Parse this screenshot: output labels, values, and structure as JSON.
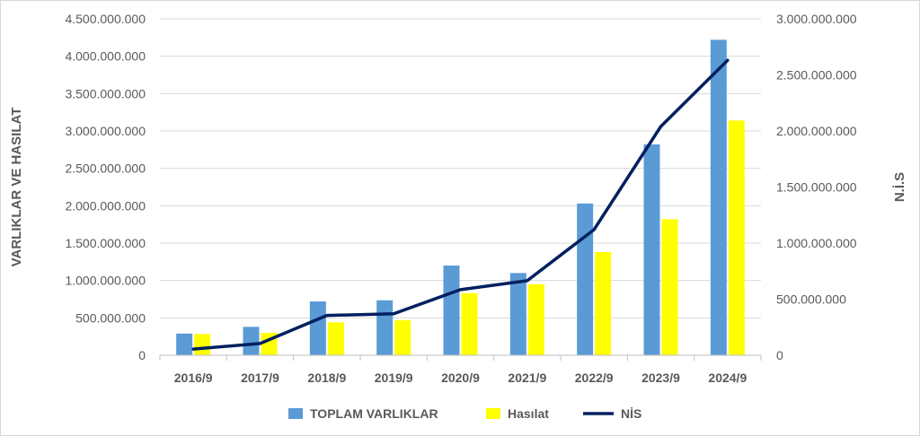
{
  "chart_data": {
    "type": "bar",
    "categories": [
      "2016/9",
      "2017/9",
      "2018/9",
      "2019/9",
      "2020/9",
      "2021/9",
      "2022/9",
      "2023/9",
      "2024/9"
    ],
    "series": [
      {
        "name": "TOPLAM VARLIKLAR",
        "type": "bar",
        "axis": "left",
        "color": "#5b9bd5",
        "values": [
          290000000,
          380000000,
          720000000,
          735000000,
          1200000000,
          1100000000,
          2030000000,
          2820000000,
          4220000000
        ]
      },
      {
        "name": "Hasılat",
        "type": "bar",
        "axis": "left",
        "color": "#ffff00",
        "values": [
          285000000,
          300000000,
          440000000,
          470000000,
          830000000,
          950000000,
          1380000000,
          1820000000,
          3140000000
        ]
      },
      {
        "name": "NİS",
        "type": "line",
        "axis": "right",
        "color": "#002060",
        "values": [
          55000000,
          105000000,
          355000000,
          370000000,
          585000000,
          665000000,
          1120000000,
          2040000000,
          2630000000
        ]
      }
    ],
    "ylabel": "VARLIKLAR VE HASILAT",
    "y2label": "N.İ.S",
    "ylim": [
      0,
      4500000000
    ],
    "y2lim": [
      0,
      3000000000
    ],
    "yticks": [
      "0",
      "500.000.000",
      "1.000.000.000",
      "1.500.000.000",
      "2.000.000.000",
      "2.500.000.000",
      "3.000.000.000",
      "3.500.000.000",
      "4.000.000.000",
      "4.500.000.000"
    ],
    "y2ticks": [
      "0",
      "500.000.000",
      "1.000.000.000",
      "1.500.000.000",
      "2.000.000.000",
      "2.500.000.000",
      "3.000.000.000"
    ],
    "grid": true,
    "legend": "bottom"
  }
}
